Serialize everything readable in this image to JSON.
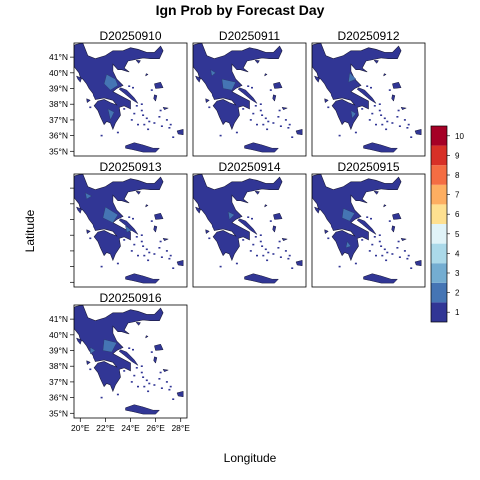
{
  "title": "Ign Prob by Forecast Day",
  "x_axis_label": "Longitude",
  "y_axis_label": "Latitude",
  "panels": [
    {
      "date": "D20250910",
      "variant": 0
    },
    {
      "date": "D20250911",
      "variant": 1
    },
    {
      "date": "D20250912",
      "variant": 2
    },
    {
      "date": "D20250913",
      "variant": 3
    },
    {
      "date": "D20250914",
      "variant": 4
    },
    {
      "date": "D20250915",
      "variant": 5
    },
    {
      "date": "D20250916",
      "variant": 6
    }
  ],
  "lat_ticks": [
    "35°N",
    "36°N",
    "37°N",
    "38°N",
    "39°N",
    "40°N",
    "41°N"
  ],
  "lon_ticks": [
    "20°E",
    "22°E",
    "24°E",
    "26°E",
    "28°E"
  ],
  "colorbar": {
    "labels": [
      "1",
      "2",
      "3",
      "4",
      "5",
      "6",
      "7",
      "8",
      "9",
      "10"
    ],
    "colors": [
      "#313695",
      "#4575b4",
      "#74add1",
      "#abd9e9",
      "#e0f3f8",
      "#fee090",
      "#fdae61",
      "#f46d43",
      "#d73027",
      "#a50026"
    ]
  },
  "map_extent": {
    "lon": [
      19.5,
      28.5
    ],
    "lat": [
      34.7,
      41.9
    ]
  }
}
